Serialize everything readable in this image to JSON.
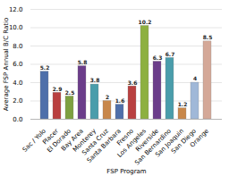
{
  "chart_data": {
    "type": "bar",
    "categories": [
      "Sac / Yolo",
      "Placer",
      "El Dorado",
      "Bay Area",
      "Monterey",
      "Santa Cruz",
      "Santa Barbara",
      "Fresno",
      "Los Angeles",
      "Riverside",
      "San Bernardino",
      "San Joaquin",
      "San Diego",
      "Orange"
    ],
    "values": [
      5.2,
      2.9,
      2.5,
      5.8,
      3.8,
      2.0,
      1.6,
      3.6,
      10.2,
      6.3,
      6.7,
      1.2,
      4.0,
      8.5
    ],
    "colors": [
      "#4e6faa",
      "#b94040",
      "#7da040",
      "#6b3d8a",
      "#4a9dab",
      "#c8874a",
      "#4e6faa",
      "#b94040",
      "#8db040",
      "#6b3d8a",
      "#4a9dab",
      "#c8874a",
      "#a0b8d8",
      "#d4a898"
    ],
    "xlabel": "FSP Program",
    "ylabel": "Average FSP Annual B/C Ratio",
    "ylim": [
      0,
      12.0
    ],
    "yticks": [
      {
        "value": 0.0,
        "label": "0.0"
      },
      {
        "value": 2.0,
        "label": "2.0"
      },
      {
        "value": 4.0,
        "label": "4.0"
      },
      {
        "value": 6.0,
        "label": "6.0"
      },
      {
        "value": 8.0,
        "label": "8.0"
      },
      {
        "value": 10.0,
        "label": "10.0"
      },
      {
        "value": 12.0,
        "label": "12.0"
      }
    ],
    "grid": true,
    "data_labels": true
  }
}
